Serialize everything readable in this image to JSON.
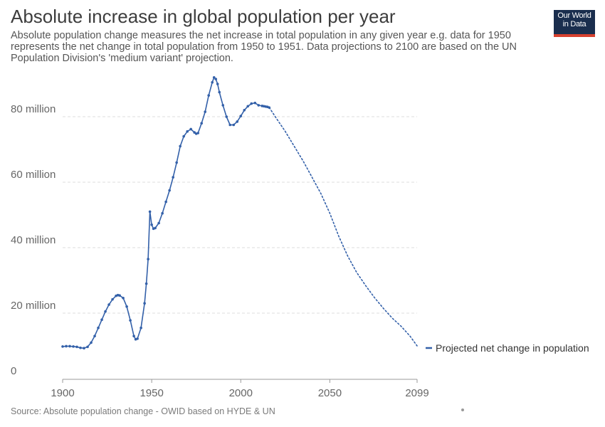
{
  "header": {
    "title": "Absolute increase in global population per year",
    "subtitle": "Absolute population change measures the net increase in total population in any given year e.g. data for 1950 represents the net change in total population from 1950 to 1951. Data projections to 2100 are based on the UN Population Division's 'medium variant' projection.",
    "logo_line1": "Our World",
    "logo_line2": "in Data"
  },
  "footer": {
    "source": "Source: Absolute population change - OWID based on HYDE & UN"
  },
  "colors": {
    "series": "#3360a9",
    "grid": "#dddddd",
    "logo_bg": "#1a2e4e",
    "logo_accent": "#d7412f"
  },
  "chart_data": {
    "type": "line",
    "title": "Absolute increase in global population per year",
    "xlim": [
      1900,
      2099
    ],
    "ylim": [
      0,
      90000000
    ],
    "x_ticks": [
      {
        "value": 1900,
        "label": "1900"
      },
      {
        "value": 1950,
        "label": "1950"
      },
      {
        "value": 2000,
        "label": "2000"
      },
      {
        "value": 2050,
        "label": "2050"
      },
      {
        "value": 2099,
        "label": "2099"
      }
    ],
    "y_ticks": [
      {
        "value": 0,
        "label": "0"
      },
      {
        "value": 20000000,
        "label": "20 million"
      },
      {
        "value": 40000000,
        "label": "40 million"
      },
      {
        "value": 60000000,
        "label": "60 million"
      },
      {
        "value": 80000000,
        "label": "80 million"
      }
    ],
    "grid": true,
    "legend_position": "right",
    "series": [
      {
        "name": "Projected net change in population",
        "observed": {
          "x": [
            1900,
            1902,
            1904,
            1906,
            1908,
            1910,
            1912,
            1914,
            1916,
            1918,
            1920,
            1922,
            1924,
            1926,
            1928,
            1930,
            1931,
            1932,
            1934,
            1936,
            1938,
            1940,
            1941,
            1942,
            1944,
            1946,
            1947,
            1948,
            1949,
            1950,
            1951,
            1952,
            1954,
            1956,
            1958,
            1960,
            1962,
            1964,
            1966,
            1968,
            1970,
            1972,
            1974,
            1975,
            1976,
            1978,
            1980,
            1982,
            1984,
            1985,
            1986,
            1987,
            1988,
            1990,
            1992,
            1994,
            1996,
            1998,
            2000,
            2002,
            2004,
            2006,
            2008,
            2010,
            2012,
            2013,
            2014,
            2015,
            2016
          ],
          "y": [
            9800000,
            9900000,
            9900000,
            9800000,
            9700000,
            9400000,
            9300000,
            9700000,
            11000000,
            13000000,
            15500000,
            18000000,
            20500000,
            22600000,
            24200000,
            25300000,
            25500000,
            25400000,
            24600000,
            22000000,
            17800000,
            13000000,
            12000000,
            12200000,
            15500000,
            23000000,
            29000000,
            36500000,
            51000000,
            47000000,
            45800000,
            46000000,
            47500000,
            50500000,
            54000000,
            57500000,
            61500000,
            66000000,
            71000000,
            74000000,
            75500000,
            76200000,
            75200000,
            74800000,
            75000000,
            78000000,
            81500000,
            86500000,
            90500000,
            92000000,
            91500000,
            90000000,
            87500000,
            83500000,
            80000000,
            77500000,
            77500000,
            78500000,
            80200000,
            82000000,
            83200000,
            84000000,
            84200000,
            83500000,
            83300000,
            83200000,
            83100000,
            83000000,
            82800000
          ]
        },
        "projected": {
          "x": [
            2016,
            2020,
            2025,
            2030,
            2035,
            2040,
            2045,
            2050,
            2055,
            2060,
            2065,
            2070,
            2075,
            2080,
            2085,
            2090,
            2095,
            2099
          ],
          "y": [
            82800000,
            79500000,
            75500000,
            71000000,
            66500000,
            61500000,
            56500000,
            50500000,
            43500000,
            37500000,
            32500000,
            28500000,
            24800000,
            21500000,
            18500000,
            16000000,
            13000000,
            10000000
          ]
        }
      }
    ]
  }
}
